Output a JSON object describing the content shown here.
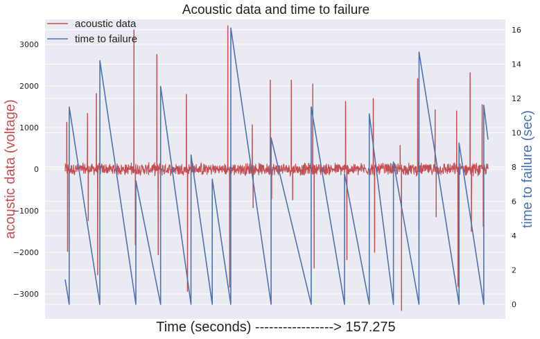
{
  "chart_data": {
    "type": "line",
    "title": "Acoustic data and time to failure",
    "xlabel": "Time (seconds) -----------------> 157.275",
    "ylabel_left": "acoustic data (voltage)",
    "ylabel_right": "time to failure (sec)",
    "left_axis": {
      "range": [
        -3600,
        3600
      ],
      "ticks": [
        3000,
        2000,
        1000,
        0,
        -1000,
        -2000,
        -3000
      ]
    },
    "right_axis": {
      "range": [
        -0.85,
        16.6
      ],
      "ticks": [
        16,
        14,
        12,
        10,
        8,
        6,
        4,
        2,
        0
      ]
    },
    "x_axis": {
      "range": [
        0,
        157.275
      ]
    },
    "grid": true,
    "legend_placement": "top-left",
    "series": [
      {
        "name": "acoustic data",
        "color": "#c44e52",
        "baseline_noise": 120,
        "spikes": [
          {
            "x": 0.6,
            "v": 1130
          },
          {
            "x": 0.9,
            "v": -1980
          },
          {
            "x": 8.3,
            "v": 1340
          },
          {
            "x": 8.6,
            "v": -1240
          },
          {
            "x": 11.6,
            "v": 1820
          },
          {
            "x": 12.1,
            "v": -2540
          },
          {
            "x": 25.6,
            "v": 3350
          },
          {
            "x": 26.1,
            "v": -1820
          },
          {
            "x": 34.1,
            "v": 2760
          },
          {
            "x": 34.6,
            "v": -2060
          },
          {
            "x": 45.1,
            "v": 1800
          },
          {
            "x": 45.5,
            "v": -2940
          },
          {
            "x": 60.5,
            "v": 3450
          },
          {
            "x": 61.2,
            "v": -2840
          },
          {
            "x": 69.6,
            "v": 1070
          },
          {
            "x": 69.9,
            "v": -930
          },
          {
            "x": 76.3,
            "v": 2140
          },
          {
            "x": 76.8,
            "v": -710
          },
          {
            "x": 84.1,
            "v": 2140
          },
          {
            "x": 84.6,
            "v": -740
          },
          {
            "x": 92.1,
            "v": 2050
          },
          {
            "x": 92.6,
            "v": -2380
          },
          {
            "x": 104.3,
            "v": 1630
          },
          {
            "x": 104.8,
            "v": -2180
          },
          {
            "x": 114.6,
            "v": 1700
          },
          {
            "x": 115.1,
            "v": -2000
          },
          {
            "x": 124.6,
            "v": 570
          },
          {
            "x": 125.1,
            "v": -3400
          },
          {
            "x": 131.1,
            "v": 2180
          },
          {
            "x": 131.6,
            "v": -1450
          },
          {
            "x": 137.6,
            "v": 1430
          },
          {
            "x": 138.0,
            "v": -1150
          },
          {
            "x": 145.6,
            "v": 1400
          },
          {
            "x": 146.1,
            "v": -2820
          },
          {
            "x": 150.6,
            "v": 2320
          },
          {
            "x": 151.1,
            "v": -1500
          },
          {
            "x": 155.1,
            "v": 1550
          },
          {
            "x": 155.5,
            "v": -1380
          }
        ]
      },
      {
        "name": "time to failure",
        "color": "#4c72b0",
        "x": [
          0,
          1.5,
          1.51,
          12.9,
          12.91,
          26.3,
          26.31,
          35.5,
          35.51,
          46.8,
          46.81,
          54.7,
          54.71,
          61.6,
          61.61,
          76.6,
          76.61,
          91.5,
          91.51,
          103.9,
          103.91,
          113.1,
          113.11,
          122.1,
          122.11,
          131.6,
          131.61,
          146.5,
          146.51,
          155.7,
          155.71,
          157.275
        ],
        "y": [
          1.45,
          0.0,
          11.5,
          0.0,
          14.2,
          0.0,
          7.2,
          0.0,
          12.7,
          0.0,
          8.7,
          0.0,
          7.3,
          0.0,
          16.1,
          0.0,
          9.7,
          0.0,
          11.5,
          0.0,
          7.6,
          0.0,
          11.1,
          0.0,
          8.3,
          0.0,
          14.7,
          0.0,
          9.4,
          0.0,
          11.6,
          9.6
        ]
      }
    ]
  }
}
